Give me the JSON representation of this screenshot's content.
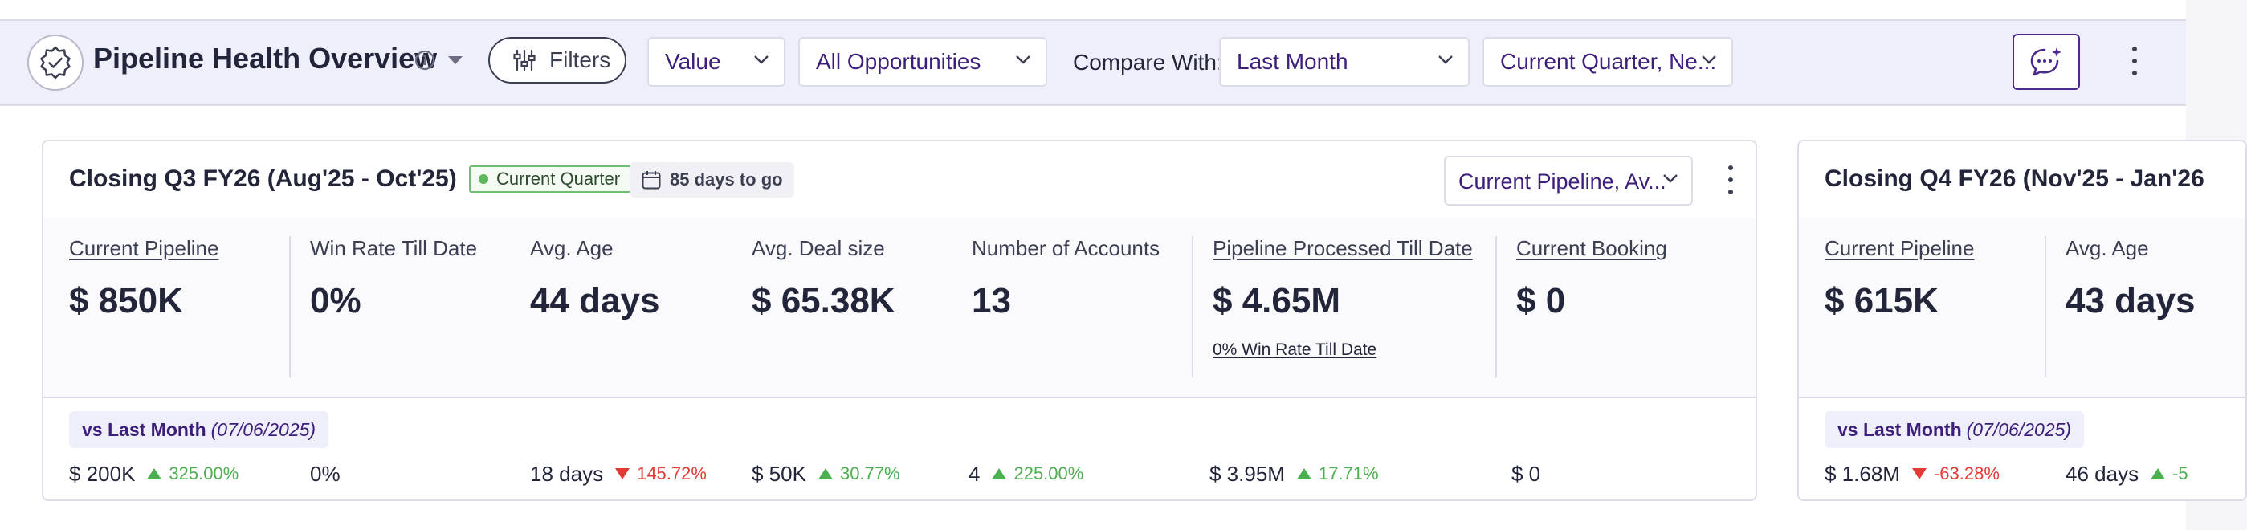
{
  "header": {
    "title": "Pipeline Health Overview",
    "filters_label": "Filters",
    "value_select": "Value",
    "opportunities_select": "All Opportunities",
    "compare_label": "Compare With:",
    "compare_select": "Last Month",
    "period_select": "Current Quarter, Ne..."
  },
  "colors": {
    "accent": "#3d1e7a",
    "positive": "#4caf50",
    "negative": "#e53935",
    "toolbar_bg": "#efeffb"
  },
  "cards": [
    {
      "title": "Closing Q3 FY26 (Aug'25 - Oct'25)",
      "badge": "Current Quarter",
      "days_to_go": "85 days to go",
      "dropdown": "Current Pipeline, Av...",
      "metrics": [
        {
          "label": "Current Pipeline",
          "value": "$ 850K"
        },
        {
          "label": "Win Rate Till Date",
          "value": "0%"
        },
        {
          "label": "Avg. Age",
          "value": "44 days"
        },
        {
          "label": "Avg. Deal size",
          "value": "$ 65.38K"
        },
        {
          "label": "Number of Accounts",
          "value": "13"
        },
        {
          "label": "Pipeline Processed Till Date",
          "value": "$ 4.65M",
          "sub": "0% Win Rate Till Date"
        },
        {
          "label": "Current Booking",
          "value": "$ 0"
        }
      ],
      "comparison": {
        "label": "vs Last Month",
        "date": "(07/06/2025)",
        "values": [
          {
            "value": "$ 200K",
            "change": "325.00%",
            "direction": "up"
          },
          {
            "value": "0%"
          },
          {
            "value": "18 days",
            "change": "145.72%",
            "direction": "down"
          },
          {
            "value": "$ 50K",
            "change": "30.77%",
            "direction": "up"
          },
          {
            "value": "4",
            "change": "225.00%",
            "direction": "up"
          },
          {
            "value": "$ 3.95M",
            "change": "17.71%",
            "direction": "up"
          },
          {
            "value": "$ 0"
          }
        ]
      }
    },
    {
      "title": "Closing Q4 FY26 (Nov'25 - Jan'26",
      "metrics": [
        {
          "label": "Current Pipeline",
          "value": "$ 615K"
        },
        {
          "label": "Avg. Age",
          "value": "43 days"
        }
      ],
      "comparison": {
        "label": "vs Last Month",
        "date": "(07/06/2025)",
        "values": [
          {
            "value": "$ 1.68M",
            "change": "-63.28%",
            "direction": "down"
          },
          {
            "value": "46 days",
            "change": "-5",
            "direction": "up"
          }
        ]
      }
    }
  ]
}
